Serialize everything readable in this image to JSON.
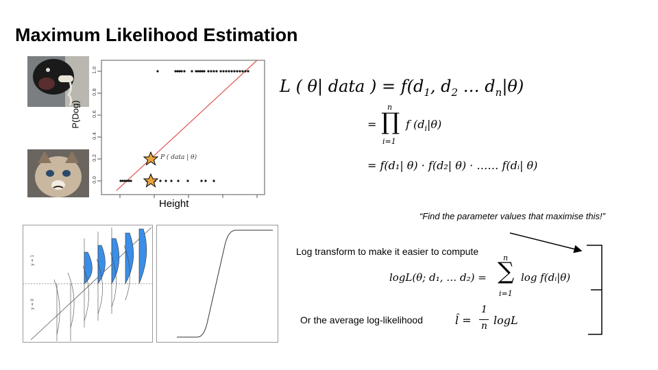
{
  "slide": {
    "title": "Maximum Likelihood Estimation"
  },
  "scatter": {
    "y_label": "P(Dog)",
    "x_label": "Height",
    "y_ticks": [
      "1.0",
      "0.8",
      "0.6",
      "0.4",
      "0.2",
      "0.0"
    ],
    "annotation": "P ( data | θ)"
  },
  "equations": {
    "main_lhs": "L ( θ| data ) = f(d",
    "product_symbol": "∏",
    "product_upper": "n",
    "product_lower": "i=1",
    "product_term": "f (d",
    "product_line": "= f(d₁| θ) · f(d₂| θ) · …… f(dᵢ| θ)",
    "log_lhs": "logL(θ; d₁, … d₂) =",
    "sum_symbol": "∑",
    "sum_upper": "n",
    "sum_lower": "i=1",
    "sum_term": "log f(dᵢ|θ)",
    "avg_lhs": "l̂ =",
    "avg_num": "1",
    "avg_den": "n",
    "avg_term": "logL"
  },
  "text": {
    "quote": "“Find the parameter values that maximise this!”",
    "log_transform": "Log transform to make it easier to compute",
    "average": "Or the average log-likelihood"
  },
  "sigmoid_panel": {
    "y1_label": "y = 1",
    "y0_label": "y = 0"
  },
  "colors": {
    "regression_line": "#d9534f",
    "star_fill": "#e8a33d",
    "normal_fill": "#3b8ee8"
  }
}
